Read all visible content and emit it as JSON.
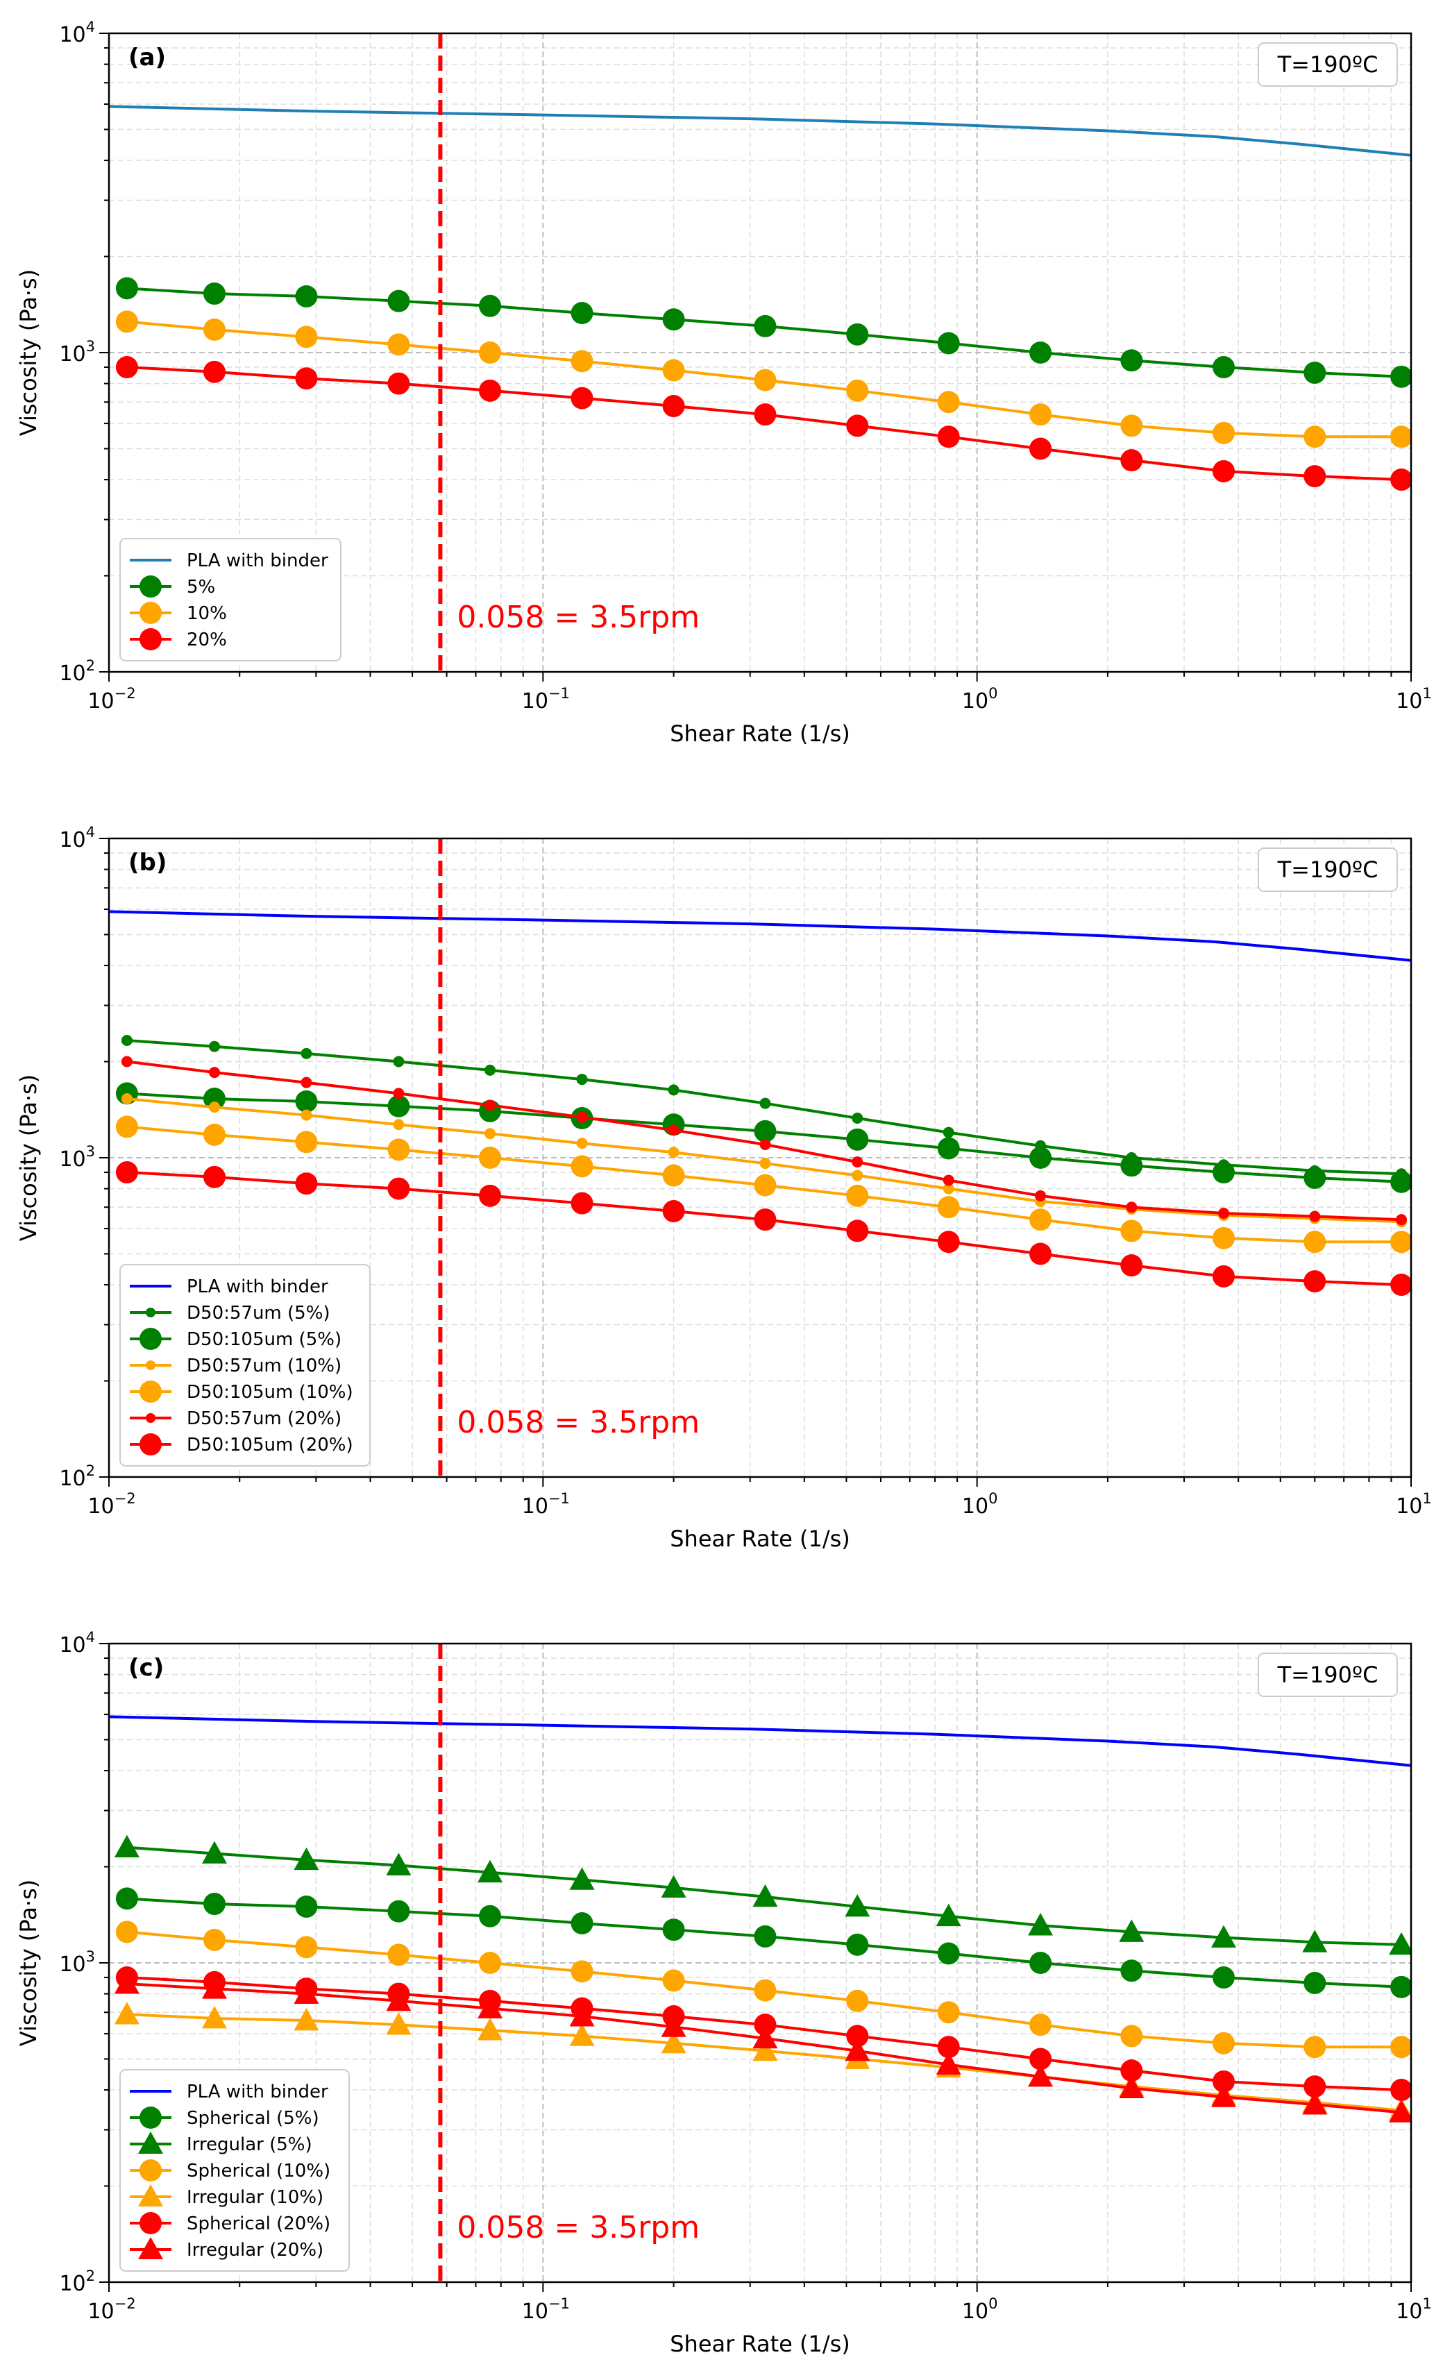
{
  "chart_data": [
    {
      "type": "line",
      "panel_label": "(a)",
      "temperature_label": "T=190ºC",
      "xlabel": "Shear Rate (1/s)",
      "ylabel": "Viscosity (Pa·s)",
      "xscale": "log",
      "yscale": "log",
      "xlim": [
        0.01,
        10
      ],
      "ylim": [
        100,
        10000
      ],
      "x_ticks": [
        "10^-2",
        "10^-1",
        "10^0",
        "10^1"
      ],
      "y_ticks": [
        "10^2",
        "10^3",
        "10^4"
      ],
      "grid": true,
      "legend_position": "lower-left",
      "reference_line": {
        "x": 0.058,
        "label": "0.058 = 3.5rpm",
        "color": "#ff0000"
      },
      "series": [
        {
          "name": "PLA with binder",
          "color": "#1f7fb4",
          "marker": "none",
          "x": [
            0.01,
            0.03,
            0.1,
            0.3,
            0.8,
            2,
            3.5,
            5.5,
            10
          ],
          "y": [
            5900,
            5700,
            5550,
            5400,
            5200,
            4950,
            4750,
            4500,
            4150
          ]
        },
        {
          "name": "5%",
          "color": "#008000",
          "marker": "circle-large",
          "x": [
            0.011,
            0.0175,
            0.0285,
            0.0465,
            0.0755,
            0.123,
            0.2,
            0.325,
            0.53,
            0.86,
            1.4,
            2.27,
            3.7,
            6.0,
            9.5
          ],
          "y": [
            1590,
            1530,
            1500,
            1450,
            1400,
            1330,
            1270,
            1210,
            1140,
            1070,
            1000,
            945,
            900,
            865,
            840
          ]
        },
        {
          "name": "10%",
          "color": "#ffa500",
          "marker": "circle-large",
          "x": [
            0.011,
            0.0175,
            0.0285,
            0.0465,
            0.0755,
            0.123,
            0.2,
            0.325,
            0.53,
            0.86,
            1.4,
            2.27,
            3.7,
            6.0,
            9.5
          ],
          "y": [
            1250,
            1180,
            1120,
            1060,
            1000,
            940,
            880,
            820,
            760,
            700,
            640,
            590,
            560,
            545,
            545
          ]
        },
        {
          "name": "20%",
          "color": "#ff0000",
          "marker": "circle-large",
          "x": [
            0.011,
            0.0175,
            0.0285,
            0.0465,
            0.0755,
            0.123,
            0.2,
            0.325,
            0.53,
            0.86,
            1.4,
            2.27,
            3.7,
            6.0,
            9.5
          ],
          "y": [
            900,
            870,
            830,
            800,
            760,
            720,
            680,
            640,
            590,
            545,
            500,
            460,
            425,
            410,
            400
          ]
        }
      ]
    },
    {
      "type": "line",
      "panel_label": "(b)",
      "temperature_label": "T=190ºC",
      "xlabel": "Shear Rate (1/s)",
      "ylabel": "Viscosity (Pa·s)",
      "xscale": "log",
      "yscale": "log",
      "xlim": [
        0.01,
        10
      ],
      "ylim": [
        100,
        10000
      ],
      "x_ticks": [
        "10^-2",
        "10^-1",
        "10^0",
        "10^1"
      ],
      "y_ticks": [
        "10^2",
        "10^3",
        "10^4"
      ],
      "grid": true,
      "legend_position": "lower-left",
      "reference_line": {
        "x": 0.058,
        "label": "0.058 = 3.5rpm",
        "color": "#ff0000"
      },
      "series": [
        {
          "name": "PLA with binder",
          "color": "#0000ff",
          "marker": "none",
          "x": [
            0.01,
            0.03,
            0.1,
            0.3,
            0.8,
            2,
            3.5,
            5.5,
            10
          ],
          "y": [
            5900,
            5700,
            5550,
            5400,
            5200,
            4950,
            4750,
            4500,
            4150
          ]
        },
        {
          "name": "D50:57um (5%)",
          "color": "#008000",
          "marker": "dot-small",
          "x": [
            0.011,
            0.0175,
            0.0285,
            0.0465,
            0.0755,
            0.123,
            0.2,
            0.325,
            0.53,
            0.86,
            1.4,
            2.27,
            3.7,
            6.0,
            9.5
          ],
          "y": [
            2330,
            2230,
            2120,
            2000,
            1880,
            1760,
            1630,
            1480,
            1330,
            1200,
            1090,
            1000,
            950,
            910,
            890
          ]
        },
        {
          "name": "D50:105um (5%)",
          "color": "#008000",
          "marker": "circle-large",
          "x": [
            0.011,
            0.0175,
            0.0285,
            0.0465,
            0.0755,
            0.123,
            0.2,
            0.325,
            0.53,
            0.86,
            1.4,
            2.27,
            3.7,
            6.0,
            9.5
          ],
          "y": [
            1590,
            1530,
            1500,
            1450,
            1400,
            1330,
            1270,
            1210,
            1140,
            1070,
            1000,
            945,
            900,
            865,
            840
          ]
        },
        {
          "name": "D50:57um (10%)",
          "color": "#ffa500",
          "marker": "dot-small",
          "x": [
            0.011,
            0.0175,
            0.0285,
            0.0465,
            0.0755,
            0.123,
            0.2,
            0.325,
            0.53,
            0.86,
            1.4,
            2.27,
            3.7,
            6.0,
            9.5
          ],
          "y": [
            1530,
            1440,
            1360,
            1270,
            1190,
            1110,
            1040,
            960,
            880,
            800,
            730,
            690,
            660,
            645,
            630
          ]
        },
        {
          "name": "D50:105um (10%)",
          "color": "#ffa500",
          "marker": "circle-large",
          "x": [
            0.011,
            0.0175,
            0.0285,
            0.0465,
            0.0755,
            0.123,
            0.2,
            0.325,
            0.53,
            0.86,
            1.4,
            2.27,
            3.7,
            6.0,
            9.5
          ],
          "y": [
            1250,
            1180,
            1120,
            1060,
            1000,
            940,
            880,
            820,
            760,
            700,
            640,
            590,
            560,
            545,
            545
          ]
        },
        {
          "name": "D50:57um (20%)",
          "color": "#ff0000",
          "marker": "dot-small",
          "x": [
            0.011,
            0.0175,
            0.0285,
            0.0465,
            0.0755,
            0.123,
            0.2,
            0.325,
            0.53,
            0.86,
            1.4,
            2.27,
            3.7,
            6.0,
            9.5
          ],
          "y": [
            2000,
            1850,
            1720,
            1590,
            1460,
            1340,
            1220,
            1100,
            970,
            850,
            760,
            700,
            670,
            655,
            640
          ]
        },
        {
          "name": "D50:105um (20%)",
          "color": "#ff0000",
          "marker": "circle-large",
          "x": [
            0.011,
            0.0175,
            0.0285,
            0.0465,
            0.0755,
            0.123,
            0.2,
            0.325,
            0.53,
            0.86,
            1.4,
            2.27,
            3.7,
            6.0,
            9.5
          ],
          "y": [
            900,
            870,
            830,
            800,
            760,
            720,
            680,
            640,
            590,
            545,
            500,
            460,
            425,
            410,
            400
          ]
        }
      ]
    },
    {
      "type": "line",
      "panel_label": "(c)",
      "temperature_label": "T=190ºC",
      "xlabel": "Shear Rate (1/s)",
      "ylabel": "Viscosity (Pa·s)",
      "xscale": "log",
      "yscale": "log",
      "xlim": [
        0.01,
        10
      ],
      "ylim": [
        100,
        10000
      ],
      "x_ticks": [
        "10^-2",
        "10^-1",
        "10^0",
        "10^1"
      ],
      "y_ticks": [
        "10^2",
        "10^3",
        "10^4"
      ],
      "grid": true,
      "legend_position": "lower-left",
      "reference_line": {
        "x": 0.058,
        "label": "0.058 = 3.5rpm",
        "color": "#ff0000"
      },
      "series": [
        {
          "name": "PLA with binder",
          "color": "#0000ff",
          "marker": "none",
          "x": [
            0.01,
            0.03,
            0.1,
            0.3,
            0.8,
            2,
            3.5,
            5.5,
            10
          ],
          "y": [
            5900,
            5700,
            5550,
            5400,
            5200,
            4950,
            4750,
            4500,
            4150
          ]
        },
        {
          "name": "Spherical (5%)",
          "color": "#008000",
          "marker": "circle-large",
          "x": [
            0.011,
            0.0175,
            0.0285,
            0.0465,
            0.0755,
            0.123,
            0.2,
            0.325,
            0.53,
            0.86,
            1.4,
            2.27,
            3.7,
            6.0,
            9.5
          ],
          "y": [
            1590,
            1530,
            1500,
            1450,
            1400,
            1330,
            1270,
            1210,
            1140,
            1070,
            1000,
            945,
            900,
            865,
            840
          ]
        },
        {
          "name": "Irregular (5%)",
          "color": "#008000",
          "marker": "triangle-large",
          "x": [
            0.011,
            0.0175,
            0.0285,
            0.0465,
            0.0755,
            0.123,
            0.2,
            0.325,
            0.53,
            0.86,
            1.4,
            2.27,
            3.7,
            6.0,
            9.5
          ],
          "y": [
            2300,
            2200,
            2100,
            2020,
            1920,
            1820,
            1720,
            1610,
            1500,
            1400,
            1310,
            1250,
            1200,
            1160,
            1140
          ]
        },
        {
          "name": "Spherical (10%)",
          "color": "#ffa500",
          "marker": "circle-large",
          "x": [
            0.011,
            0.0175,
            0.0285,
            0.0465,
            0.0755,
            0.123,
            0.2,
            0.325,
            0.53,
            0.86,
            1.4,
            2.27,
            3.7,
            6.0,
            9.5
          ],
          "y": [
            1250,
            1180,
            1120,
            1060,
            1000,
            940,
            880,
            820,
            760,
            700,
            640,
            590,
            560,
            545,
            545
          ]
        },
        {
          "name": "Irregular (10%)",
          "color": "#ffa500",
          "marker": "triangle-large",
          "x": [
            0.011,
            0.0175,
            0.0285,
            0.0465,
            0.0755,
            0.123,
            0.2,
            0.325,
            0.53,
            0.86,
            1.4,
            2.27,
            3.7,
            6.0,
            9.5
          ],
          "y": [
            690,
            670,
            660,
            640,
            615,
            590,
            560,
            530,
            500,
            470,
            440,
            410,
            385,
            365,
            345
          ]
        },
        {
          "name": "Spherical (20%)",
          "color": "#ff0000",
          "marker": "circle-large",
          "x": [
            0.011,
            0.0175,
            0.0285,
            0.0465,
            0.0755,
            0.123,
            0.2,
            0.325,
            0.53,
            0.86,
            1.4,
            2.27,
            3.7,
            6.0,
            9.5
          ],
          "y": [
            900,
            870,
            830,
            800,
            760,
            720,
            680,
            640,
            590,
            545,
            500,
            460,
            425,
            410,
            400
          ]
        },
        {
          "name": "Irregular (20%)",
          "color": "#ff0000",
          "marker": "triangle-large",
          "x": [
            0.011,
            0.0175,
            0.0285,
            0.0465,
            0.0755,
            0.123,
            0.2,
            0.325,
            0.53,
            0.86,
            1.4,
            2.27,
            3.7,
            6.0,
            9.5
          ],
          "y": [
            860,
            830,
            800,
            760,
            720,
            680,
            630,
            580,
            530,
            480,
            440,
            405,
            380,
            360,
            340
          ]
        }
      ]
    }
  ]
}
